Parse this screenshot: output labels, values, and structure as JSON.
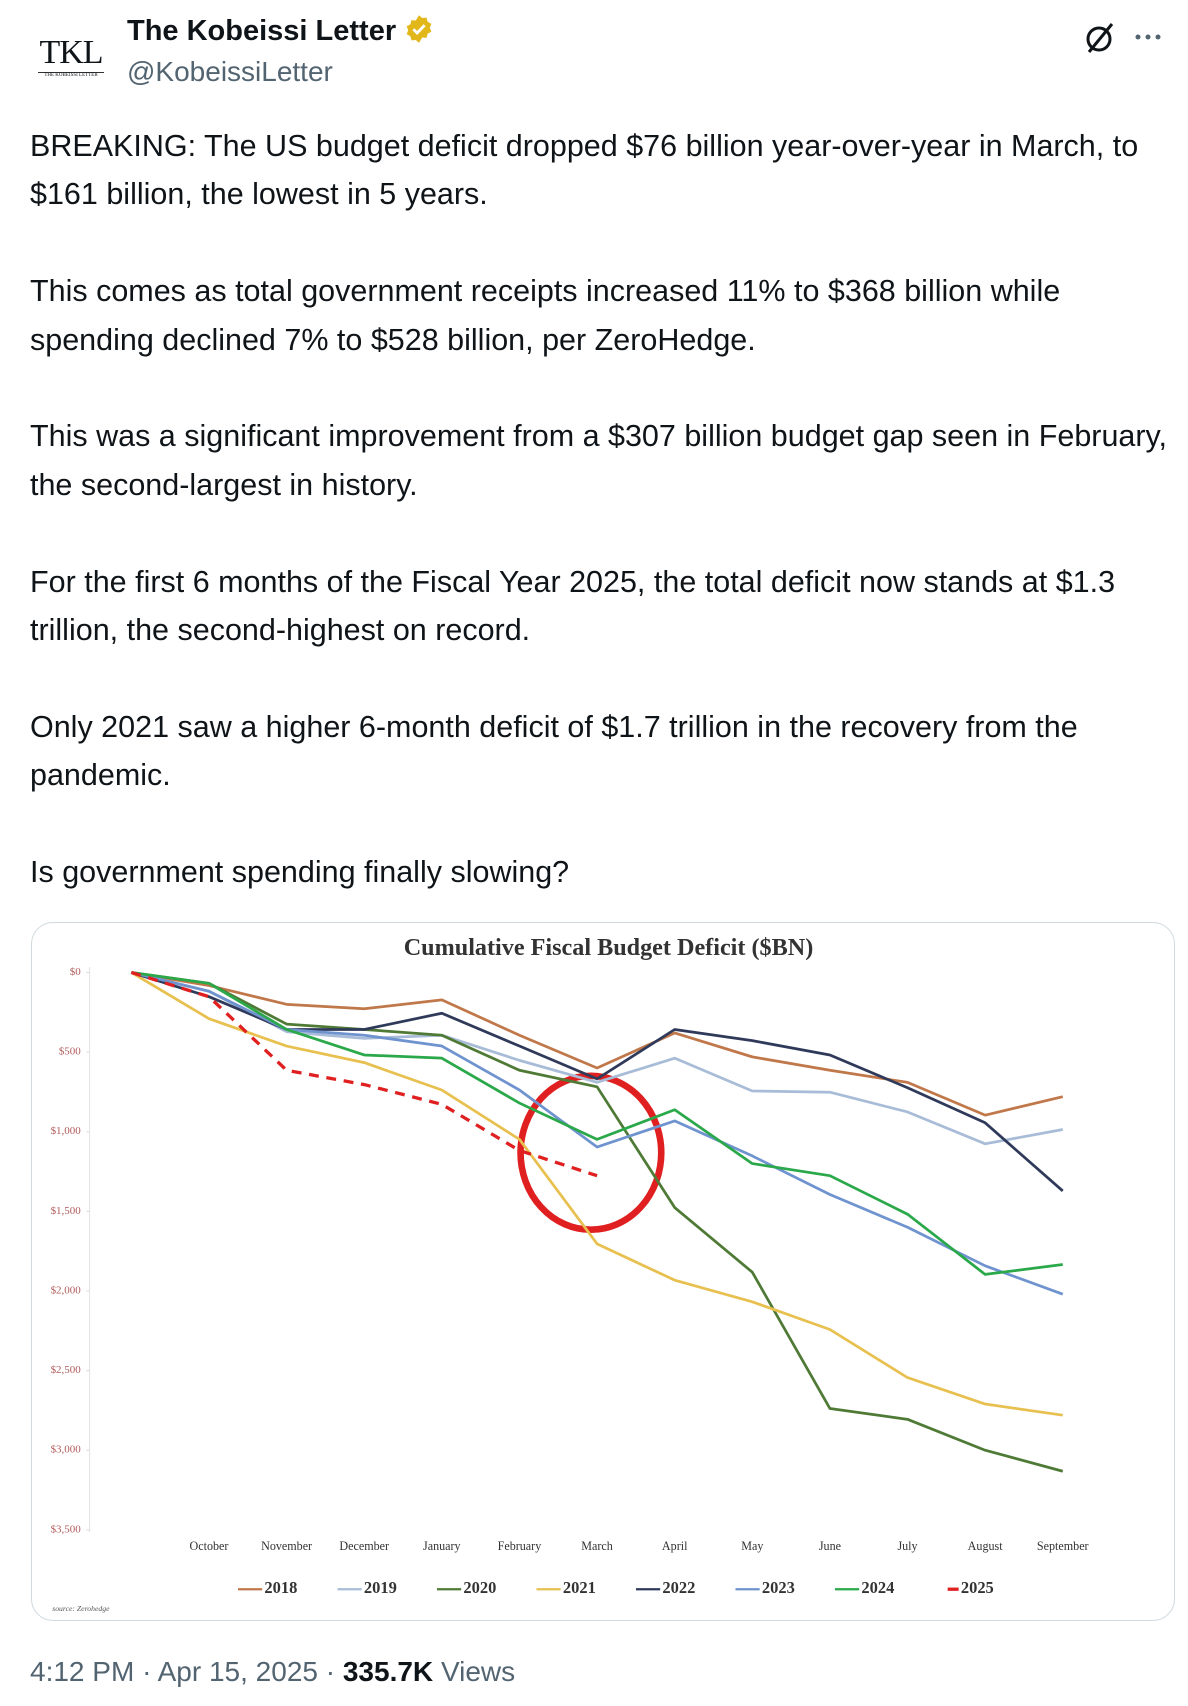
{
  "header": {
    "avatar_text": "TKL",
    "avatar_subtext": "THE KOBEISSI LETTER",
    "name": "The Kobeissi Letter",
    "handle": "@KobeissiLetter"
  },
  "body": [
    "BREAKING: The US budget deficit dropped $76 billion year-over-year in March, to $161 billion, the lowest in 5 years.",
    "This comes as total government receipts increased 11% to $368 billion while spending declined 7% to $528 billion, per ZeroHedge.",
    "This was a significant improvement from a $307 billion budget gap seen in February, the second-largest in history.",
    "For the first 6 months of the Fiscal Year 2025, the total deficit now stands at $1.3 trillion, the second-highest on record.",
    "Only 2021 saw a higher 6-month deficit of $1.7 trillion in the recovery from the pandemic.",
    "Is government spending finally slowing?"
  ],
  "chart_data": {
    "type": "line",
    "title": "Cumulative Fiscal Budget Deficit ($BN)",
    "source": "source: Zerohedge",
    "categories": [
      null,
      "October",
      "November",
      "December",
      "January",
      "February",
      "March",
      "April",
      "May",
      "June",
      "July",
      "August",
      "September"
    ],
    "ylim": [
      0,
      3500
    ],
    "y_inverted": true,
    "grid": false,
    "legend": "bottom",
    "yticks": [
      {
        "value": 0,
        "label": "$0"
      },
      {
        "value": 500,
        "label": "$500"
      },
      {
        "value": 1000,
        "label": "$1,000"
      },
      {
        "value": 1500,
        "label": "$1,500"
      },
      {
        "value": 2000,
        "label": "$2,000"
      },
      {
        "value": 2500,
        "label": "$2,500"
      },
      {
        "value": 3000,
        "label": "$3,000"
      },
      {
        "value": 3500,
        "label": "$3,500"
      }
    ],
    "series": [
      {
        "name": "2018",
        "color": "#c0784a",
        "values": [
          0,
          82,
          200,
          228,
          172,
          394,
          600,
          380,
          530,
          614,
          690,
          896,
          780
        ]
      },
      {
        "name": "2019",
        "color": "#a8bcd8",
        "values": [
          0,
          118,
          372,
          414,
          394,
          552,
          690,
          538,
          744,
          752,
          876,
          1076,
          986
        ]
      },
      {
        "name": "2020",
        "color": "#4f7a35",
        "values": [
          0,
          68,
          324,
          358,
          394,
          614,
          718,
          1476,
          1882,
          2738,
          2806,
          3000,
          3132
        ]
      },
      {
        "name": "2021",
        "color": "#e8c050",
        "values": [
          0,
          290,
          462,
          566,
          738,
          1048,
          1704,
          1932,
          2068,
          2242,
          2544,
          2710,
          2780
        ]
      },
      {
        "name": "2022",
        "color": "#2f3a5a",
        "values": [
          0,
          152,
          358,
          358,
          256,
          462,
          668,
          358,
          428,
          518,
          724,
          944,
          1372
        ]
      },
      {
        "name": "2023",
        "color": "#6f93cf",
        "values": [
          0,
          118,
          358,
          394,
          462,
          738,
          1096,
          932,
          1152,
          1394,
          1600,
          1842,
          2020
        ]
      },
      {
        "name": "2024",
        "color": "#2aa84a",
        "values": [
          0,
          68,
          358,
          518,
          538,
          820,
          1048,
          862,
          1200,
          1276,
          1518,
          1896,
          1834
        ]
      },
      {
        "name": "2025",
        "color": "#e02020",
        "dashed": true,
        "values": [
          0,
          152,
          614,
          704,
          828,
          1118,
          1276,
          null,
          null,
          null,
          null,
          null,
          null
        ]
      }
    ]
  },
  "footer": {
    "time": "4:12 PM",
    "separator": "·",
    "date": "Apr 15, 2025",
    "views_count": "335.7K",
    "views_label": "Views"
  }
}
